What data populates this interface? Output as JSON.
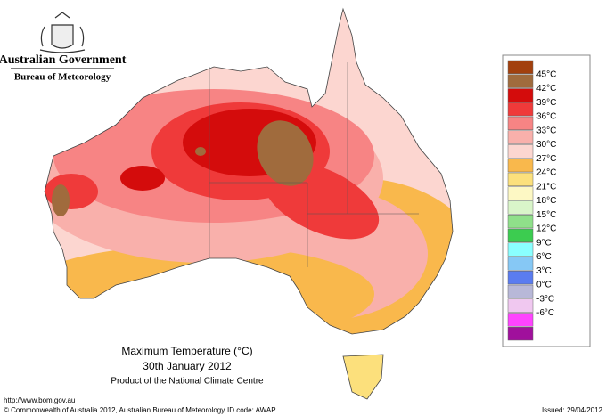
{
  "header": {
    "title": "Australian Government",
    "subtitle": "Bureau of Meteorology"
  },
  "map": {
    "title": "Maximum Temperature (°C)",
    "date": "30th January 2012",
    "credit": "Product of the National Climate Centre"
  },
  "legend": {
    "colors": [
      "#a2400e",
      "#a06b3d",
      "#d40c0c",
      "#ef3a3a",
      "#f78484",
      "#f9b0ab",
      "#fcd6d0",
      "#f9b84c",
      "#fce07c",
      "#fdf8c4",
      "#d9f5c9",
      "#8fe08a",
      "#3ccc50",
      "#8affff",
      "#86c8f5",
      "#5a7cf0",
      "#b8b8d8",
      "#f0c8f0",
      "#ff44ff",
      "#a0109c"
    ],
    "labels": [
      "45°C",
      "42°C",
      "39°C",
      "36°C",
      "33°C",
      "30°C",
      "27°C",
      "24°C",
      "21°C",
      "18°C",
      "15°C",
      "12°C",
      "9°C",
      "6°C",
      "3°C",
      "0°C",
      "-3°C",
      "-6°C"
    ]
  },
  "footer": {
    "url": "http://www.bom.gov.au",
    "copyright": "© Commonwealth of Australia 2012, Australian Bureau of Meteorology",
    "id_code": "ID code: AWAP",
    "issued": "Issued: 29/04/2012"
  }
}
